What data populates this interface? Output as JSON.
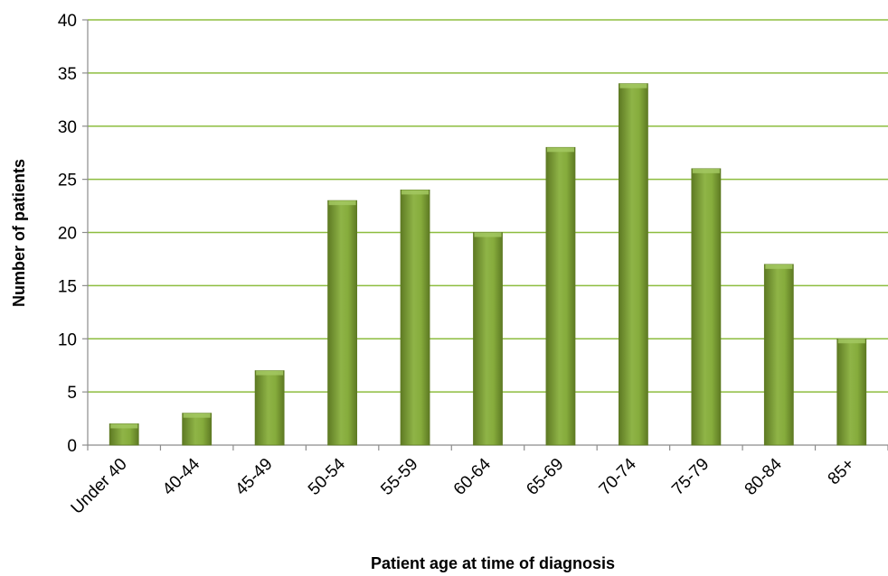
{
  "chart_data": {
    "type": "bar",
    "title": "",
    "xlabel": "Patient age at time of diagnosis",
    "ylabel": "Number of patients",
    "categories": [
      "Under 40",
      "40-44",
      "45-49",
      "50-54",
      "55-59",
      "60-64",
      "65-69",
      "70-74",
      "75-79",
      "80-84",
      "85+"
    ],
    "values": [
      2,
      3,
      7,
      23,
      24,
      20,
      28,
      34,
      26,
      17,
      10
    ],
    "ylim": [
      0,
      40
    ],
    "yticks": [
      0,
      5,
      10,
      15,
      20,
      25,
      30,
      35,
      40
    ],
    "grid": "horizontal",
    "legend": "none",
    "colors": {
      "bar_dark": "#5e7a23",
      "bar_mid": "#86ac3c",
      "bar_light": "#a3c862",
      "gridline": "#8dbd3f",
      "axis": "#8c8c8c"
    }
  }
}
